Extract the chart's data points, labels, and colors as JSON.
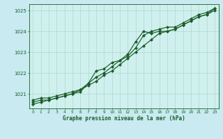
{
  "title": "Graphe pression niveau de la mer (hPa)",
  "xlabel_ticks": [
    0,
    1,
    2,
    3,
    4,
    5,
    6,
    7,
    8,
    9,
    10,
    11,
    12,
    13,
    14,
    15,
    16,
    17,
    18,
    19,
    20,
    21,
    22,
    23
  ],
  "ylim": [
    1020.3,
    1025.3
  ],
  "yticks": [
    1021,
    1022,
    1023,
    1024,
    1025
  ],
  "background_color": "#c8eaf0",
  "plot_bg_color": "#cff0ee",
  "grid_color": "#b0d8cc",
  "line_color": "#1a5c28",
  "marker": "D",
  "markersize": 2.2,
  "linewidth": 0.85,
  "series1_x": [
    0,
    1,
    2,
    3,
    4,
    5,
    6,
    7,
    8,
    9,
    10,
    11,
    12,
    13,
    14,
    15,
    16,
    17,
    18,
    19,
    20,
    21,
    22,
    23
  ],
  "series1_y": [
    1020.7,
    1020.8,
    1020.8,
    1020.9,
    1021.0,
    1021.1,
    1021.2,
    1021.4,
    1021.6,
    1021.9,
    1022.1,
    1022.4,
    1022.7,
    1023.0,
    1023.3,
    1023.6,
    1023.9,
    1024.0,
    1024.1,
    1024.3,
    1024.5,
    1024.7,
    1024.8,
    1025.1
  ],
  "series2_x": [
    0,
    1,
    2,
    3,
    4,
    5,
    6,
    7,
    8,
    9,
    10,
    11,
    12,
    13,
    14,
    15,
    16,
    17,
    18,
    19,
    20,
    21,
    22,
    23
  ],
  "series2_y": [
    1020.6,
    1020.7,
    1020.7,
    1020.8,
    1020.9,
    1021.0,
    1021.2,
    1021.5,
    1021.8,
    1022.0,
    1022.3,
    1022.6,
    1022.9,
    1023.5,
    1024.0,
    1023.9,
    1024.0,
    1024.0,
    1024.1,
    1024.3,
    1024.5,
    1024.7,
    1024.8,
    1025.0
  ],
  "series3_x": [
    0,
    1,
    2,
    3,
    4,
    5,
    6,
    7,
    8,
    9,
    10,
    11,
    12,
    13,
    14,
    15,
    16,
    17,
    18,
    19,
    20,
    21,
    22,
    23
  ],
  "series3_y": [
    1020.5,
    1020.6,
    1020.7,
    1020.8,
    1020.9,
    1021.0,
    1021.1,
    1021.5,
    1022.1,
    1022.2,
    1022.5,
    1022.6,
    1022.8,
    1023.2,
    1023.8,
    1024.0,
    1024.1,
    1024.2,
    1024.2,
    1024.4,
    1024.6,
    1024.8,
    1024.9,
    1025.1
  ]
}
